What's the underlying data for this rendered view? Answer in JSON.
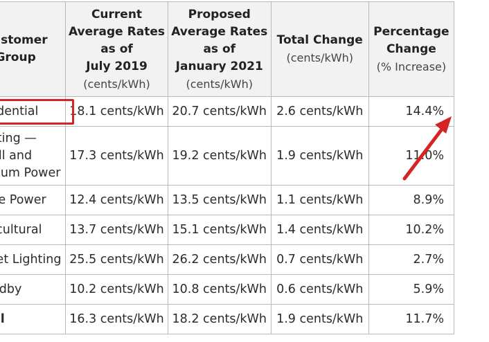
{
  "headers": [
    {
      "bold": [
        "Customer",
        "Group"
      ],
      "sub": ""
    },
    {
      "bold": [
        "Current",
        "Average Rates",
        "as of",
        "July 2019"
      ],
      "sub": "(cents/kWh)"
    },
    {
      "bold": [
        "Proposed",
        "Average Rates",
        "as of",
        "January 2021"
      ],
      "sub": "(cents/kWh)"
    },
    {
      "bold": [
        "Total Change"
      ],
      "sub": "(cents/kWh)"
    },
    {
      "bold": [
        "Percentage",
        "Change"
      ],
      "sub": "(% Increase)"
    }
  ],
  "rows": [
    {
      "group": [
        "Residential"
      ],
      "current": "18.1 cents/kWh",
      "proposed": "20.7 cents/kWh",
      "change": "2.6 cents/kWh",
      "percent": "14.4%"
    },
    {
      "group": [
        "Lighting —",
        "Small and",
        "Medium Power"
      ],
      "current": "17.3 cents/kWh",
      "proposed": "19.2 cents/kWh",
      "change": "1.9 cents/kWh",
      "percent": "11.0%"
    },
    {
      "group": [
        "Large Power"
      ],
      "current": "12.4 cents/kWh",
      "proposed": "13.5 cents/kWh",
      "change": "1.1 cents/kWh",
      "percent": "8.9%"
    },
    {
      "group": [
        "Agricultural"
      ],
      "current": "13.7 cents/kWh",
      "proposed": "15.1 cents/kWh",
      "change": "1.4 cents/kWh",
      "percent": "10.2%"
    },
    {
      "group": [
        "Street Lighting"
      ],
      "current": "25.5 cents/kWh",
      "proposed": "26.2 cents/kWh",
      "change": "0.7 cents/kWh",
      "percent": "2.7%"
    },
    {
      "group": [
        "Standby"
      ],
      "current": "10.2 cents/kWh",
      "proposed": "10.8 cents/kWh",
      "change": "0.6 cents/kWh",
      "percent": "5.9%"
    },
    {
      "group": [
        "Total"
      ],
      "current": "16.3 cents/kWh",
      "proposed": "18.2 cents/kWh",
      "change": "1.9 cents/kWh",
      "percent": "11.7%"
    }
  ],
  "annotation_color": "#d42424"
}
